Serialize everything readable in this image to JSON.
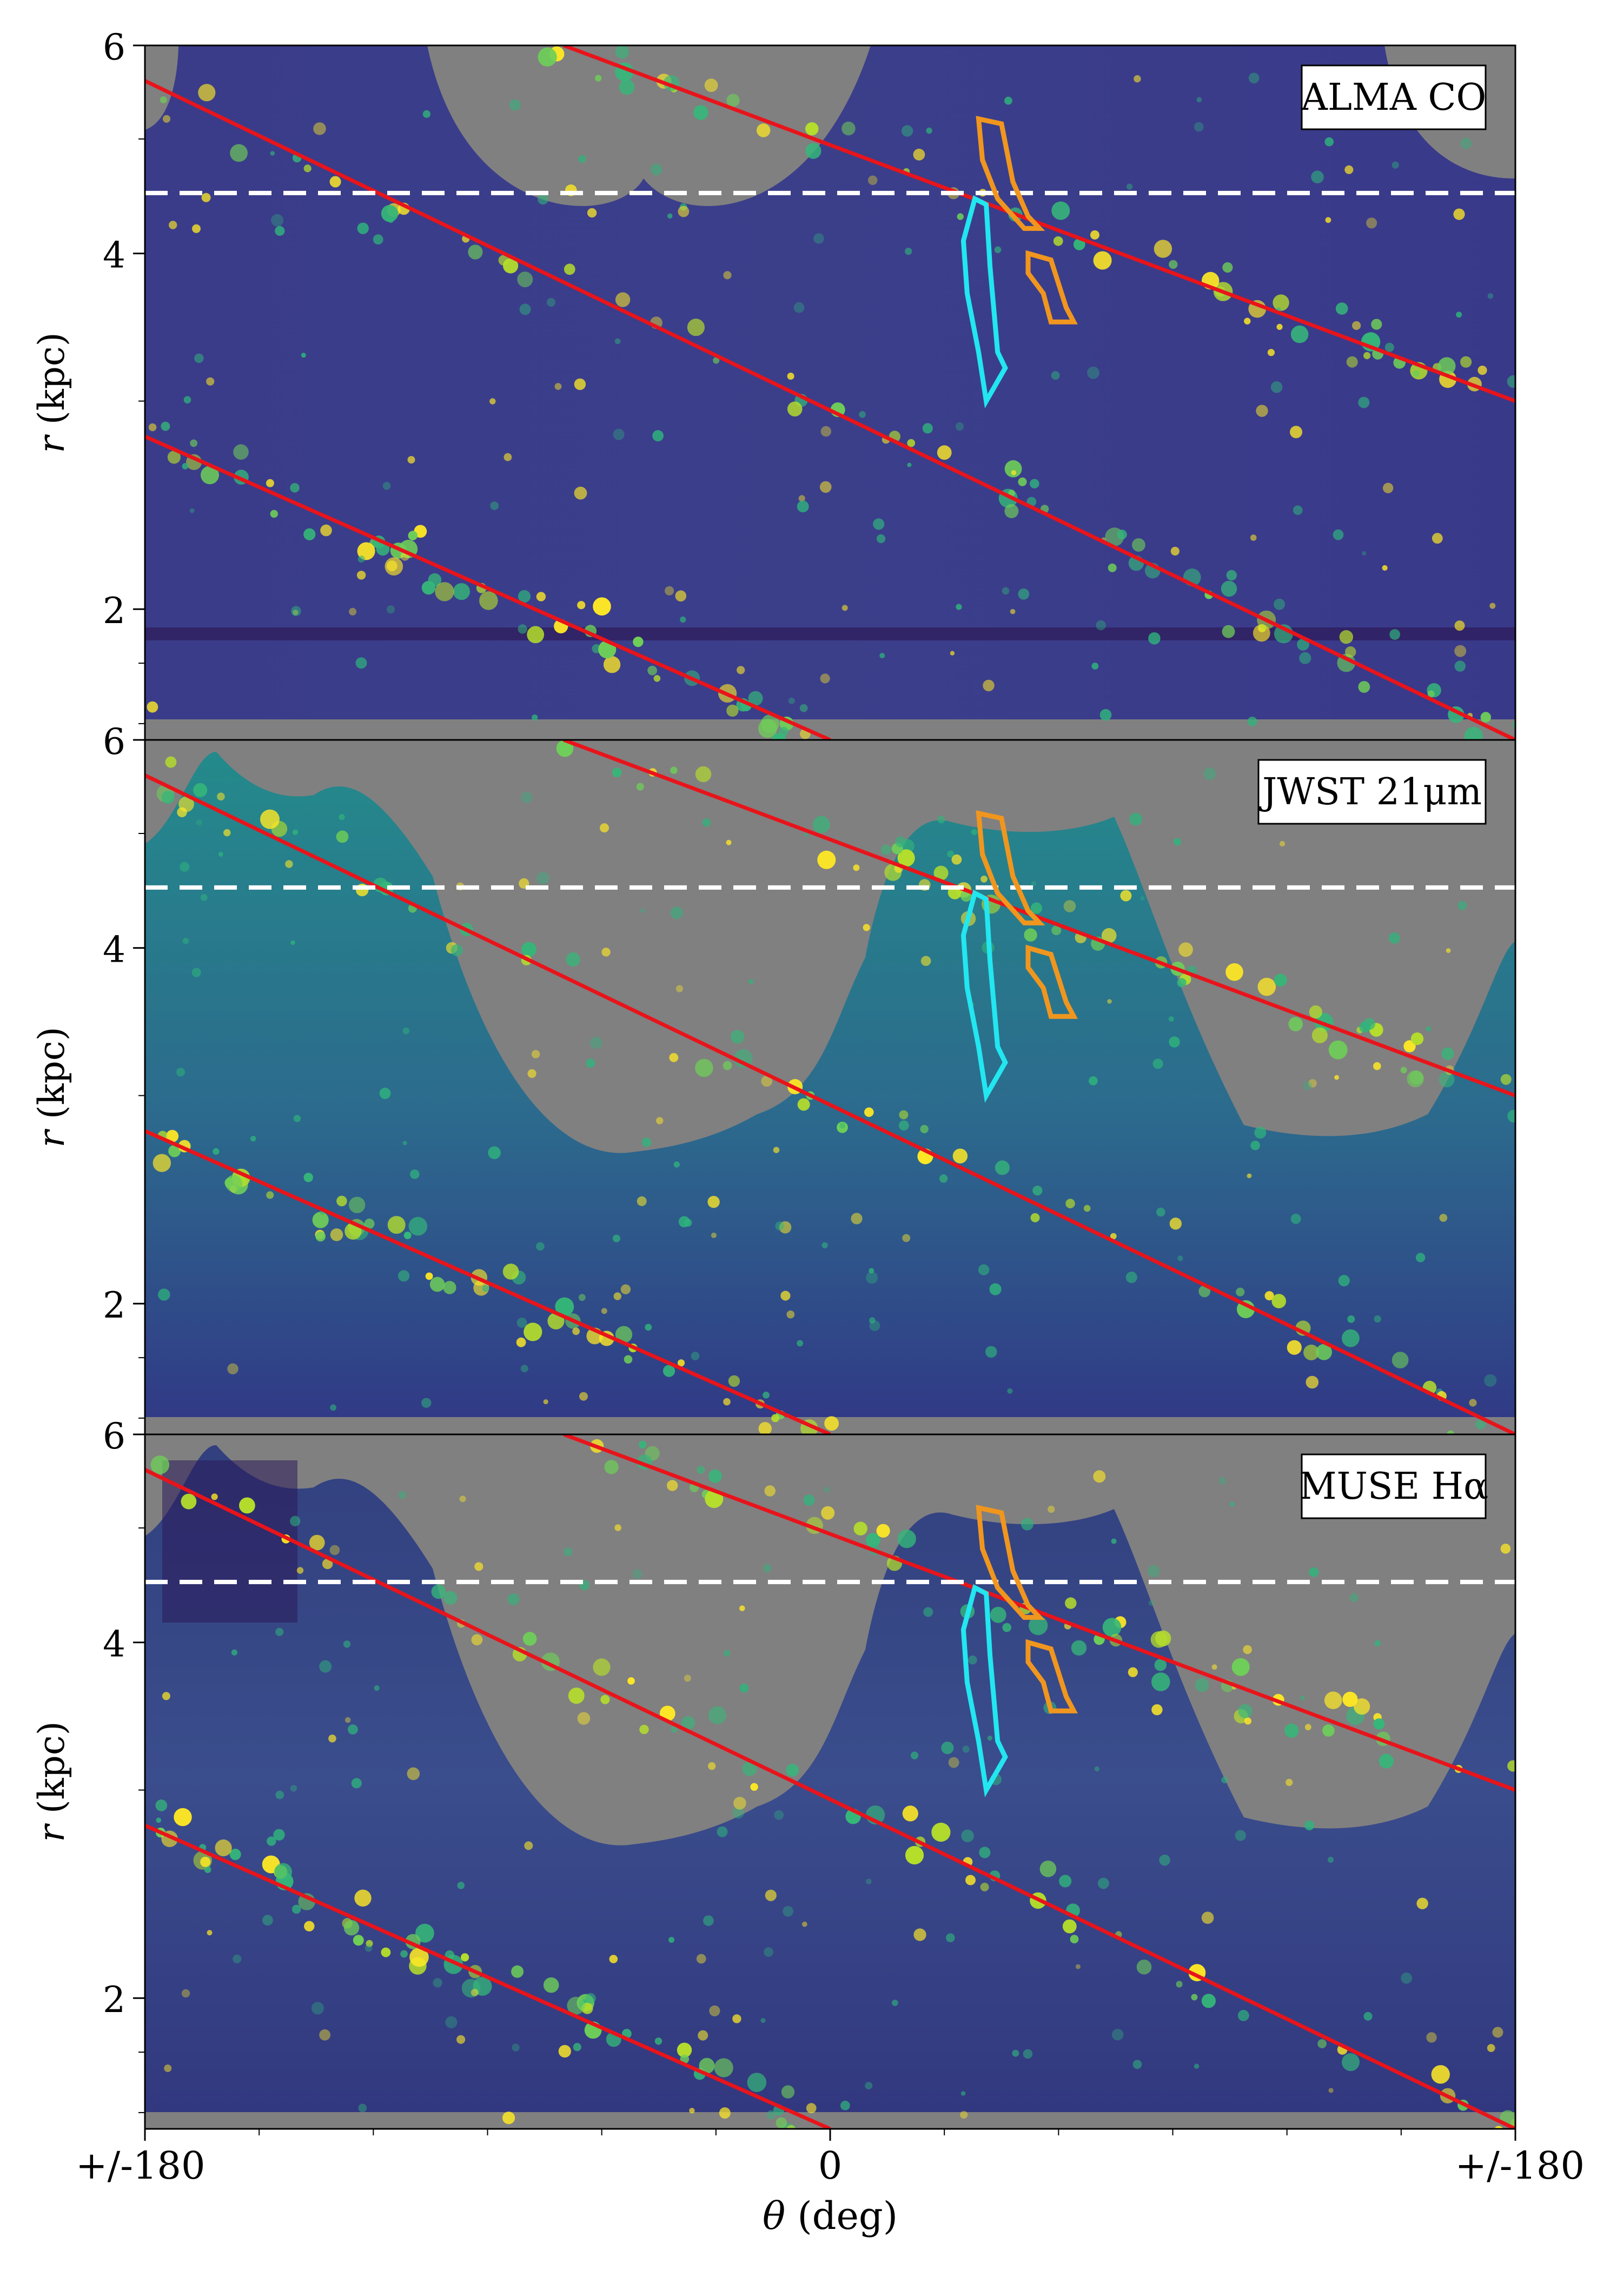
{
  "chart_data": {
    "type": "heatmap",
    "shared_x": {
      "label": "θ (deg)",
      "range": [
        -180,
        180
      ],
      "major_ticks": [
        -180,
        0,
        180
      ],
      "tick_labels": [
        "+/-180",
        "0",
        "+/-180"
      ]
    },
    "panels": [
      {
        "id": "co",
        "label": "ALMA CO",
        "ylabel": "r (kpc)",
        "yscale": "log",
        "ylim": [
          1.55,
          6.0
        ],
        "major_yticks": [
          2,
          4,
          6
        ],
        "tick_labels": [
          "2",
          "4",
          "6"
        ],
        "colormap": "viridis",
        "no_data_color": "#808080",
        "series": [
          {
            "kind": "log-spiral",
            "color": "#e8141b",
            "points": [
              [
                -180,
                2.8
              ],
              [
                0,
                1.55
              ]
            ]
          },
          {
            "kind": "log-spiral",
            "color": "#e8141b",
            "points": [
              [
                -180,
                5.6
              ],
              [
                180,
                1.55
              ]
            ]
          },
          {
            "kind": "log-spiral",
            "color": "#e8141b",
            "points": [
              [
                -70,
                6.0
              ],
              [
                180,
                3.0
              ]
            ]
          },
          {
            "kind": "reference-radius",
            "color": "#ffffff",
            "style": "dashed",
            "r": 4.5
          }
        ],
        "regions": [
          {
            "color": "#f0961e",
            "points": [
              [
                39,
                5.2
              ],
              [
                45,
                5.15
              ],
              [
                48,
                4.6
              ],
              [
                52,
                4.3
              ],
              [
                55,
                4.2
              ],
              [
                51,
                4.2
              ],
              [
                44,
                4.45
              ],
              [
                40,
                4.8
              ]
            ]
          },
          {
            "color": "#f0961e",
            "points": [
              [
                52,
                4.0
              ],
              [
                58,
                3.95
              ],
              [
                62,
                3.6
              ],
              [
                64,
                3.5
              ],
              [
                58,
                3.5
              ],
              [
                56,
                3.7
              ],
              [
                52,
                3.85
              ]
            ]
          },
          {
            "color": "#22e6f0",
            "points": [
              [
                38,
                4.45
              ],
              [
                41,
                4.4
              ],
              [
                42,
                3.9
              ],
              [
                44,
                3.3
              ],
              [
                46,
                3.2
              ],
              [
                41,
                3.0
              ],
              [
                39,
                3.3
              ],
              [
                36,
                3.7
              ],
              [
                35,
                4.1
              ]
            ]
          }
        ]
      },
      {
        "id": "jwst",
        "label": "JWST 21μm",
        "ylabel": "r (kpc)",
        "yscale": "log",
        "ylim": [
          1.55,
          6.0
        ],
        "major_yticks": [
          2,
          4,
          6
        ],
        "tick_labels": [
          "2",
          "4",
          "6"
        ],
        "colormap": "viridis",
        "no_data_color": "#808080",
        "series": [
          {
            "kind": "log-spiral",
            "color": "#e8141b",
            "points": [
              [
                -180,
                2.8
              ],
              [
                0,
                1.55
              ]
            ]
          },
          {
            "kind": "log-spiral",
            "color": "#e8141b",
            "points": [
              [
                -180,
                5.6
              ],
              [
                180,
                1.55
              ]
            ]
          },
          {
            "kind": "log-spiral",
            "color": "#e8141b",
            "points": [
              [
                -70,
                6.0
              ],
              [
                180,
                3.0
              ]
            ]
          },
          {
            "kind": "reference-radius",
            "color": "#ffffff",
            "style": "dashed",
            "r": 4.5
          }
        ],
        "regions": [
          {
            "color": "#f0961e",
            "points": [
              [
                39,
                5.2
              ],
              [
                45,
                5.15
              ],
              [
                48,
                4.6
              ],
              [
                52,
                4.3
              ],
              [
                55,
                4.2
              ],
              [
                51,
                4.2
              ],
              [
                44,
                4.45
              ],
              [
                40,
                4.8
              ]
            ]
          },
          {
            "color": "#f0961e",
            "points": [
              [
                52,
                4.0
              ],
              [
                58,
                3.95
              ],
              [
                62,
                3.6
              ],
              [
                64,
                3.5
              ],
              [
                58,
                3.5
              ],
              [
                56,
                3.7
              ],
              [
                52,
                3.85
              ]
            ]
          },
          {
            "color": "#22e6f0",
            "points": [
              [
                38,
                4.45
              ],
              [
                41,
                4.4
              ],
              [
                42,
                3.9
              ],
              [
                44,
                3.3
              ],
              [
                46,
                3.2
              ],
              [
                41,
                3.0
              ],
              [
                39,
                3.3
              ],
              [
                36,
                3.7
              ],
              [
                35,
                4.1
              ]
            ]
          }
        ]
      },
      {
        "id": "muse",
        "label": "MUSE Hα",
        "ylabel": "r (kpc)",
        "yscale": "log",
        "ylim": [
          1.55,
          6.0
        ],
        "major_yticks": [
          2,
          4,
          6
        ],
        "tick_labels": [
          "2",
          "4",
          "6"
        ],
        "colormap": "viridis",
        "no_data_color": "#808080",
        "series": [
          {
            "kind": "log-spiral",
            "color": "#e8141b",
            "points": [
              [
                -180,
                2.8
              ],
              [
                0,
                1.55
              ]
            ]
          },
          {
            "kind": "log-spiral",
            "color": "#e8141b",
            "points": [
              [
                -180,
                5.6
              ],
              [
                180,
                1.55
              ]
            ]
          },
          {
            "kind": "log-spiral",
            "color": "#e8141b",
            "points": [
              [
                -70,
                6.0
              ],
              [
                180,
                3.0
              ]
            ]
          },
          {
            "kind": "reference-radius",
            "color": "#ffffff",
            "style": "dashed",
            "r": 4.5
          }
        ],
        "regions": [
          {
            "color": "#f0961e",
            "points": [
              [
                39,
                5.2
              ],
              [
                45,
                5.15
              ],
              [
                48,
                4.6
              ],
              [
                52,
                4.3
              ],
              [
                55,
                4.2
              ],
              [
                51,
                4.2
              ],
              [
                44,
                4.45
              ],
              [
                40,
                4.8
              ]
            ]
          },
          {
            "color": "#f0961e",
            "points": [
              [
                52,
                4.0
              ],
              [
                58,
                3.95
              ],
              [
                62,
                3.6
              ],
              [
                64,
                3.5
              ],
              [
                58,
                3.5
              ],
              [
                56,
                3.7
              ],
              [
                52,
                3.85
              ]
            ]
          },
          {
            "color": "#22e6f0",
            "points": [
              [
                38,
                4.45
              ],
              [
                41,
                4.4
              ],
              [
                42,
                3.9
              ],
              [
                44,
                3.3
              ],
              [
                46,
                3.2
              ],
              [
                41,
                3.0
              ],
              [
                39,
                3.3
              ],
              [
                36,
                3.7
              ],
              [
                35,
                4.1
              ]
            ]
          }
        ]
      }
    ]
  }
}
